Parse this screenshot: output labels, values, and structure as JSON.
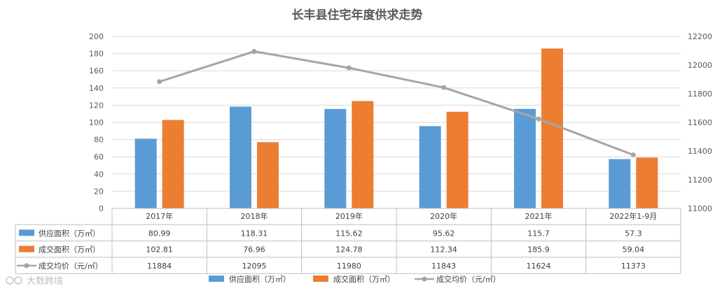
{
  "chart_data": {
    "type": "bar",
    "title": "长丰县住宅年度供求走势",
    "categories": [
      "2017年",
      "2018年",
      "2019年",
      "2020年",
      "2021年",
      "2022年1-9月"
    ],
    "series": [
      {
        "name": "供应面积（万㎡）",
        "type": "bar",
        "axis": "left",
        "color": "#5b9bd5",
        "values": [
          80.99,
          118.31,
          115.62,
          95.62,
          115.7,
          57.3
        ],
        "labels": [
          "80.99",
          "118.31",
          "115.62",
          "95.62",
          "115.7",
          "57.3"
        ]
      },
      {
        "name": "成交面积（万㎡）",
        "type": "bar",
        "axis": "left",
        "color": "#ed7d31",
        "values": [
          102.81,
          76.96,
          124.78,
          112.34,
          185.9,
          59.04
        ],
        "labels": [
          "102.81",
          "76.96",
          "124.78",
          "112.34",
          "185.9",
          "59.04"
        ]
      },
      {
        "name": "成交均价（元/㎡）",
        "type": "line",
        "axis": "right",
        "color": "#a5a5a5",
        "values": [
          11884,
          12095,
          11980,
          11843,
          11624,
          11373
        ],
        "labels": [
          "11884",
          "12095",
          "11980",
          "11843",
          "11624",
          "11373"
        ]
      }
    ],
    "y_left": {
      "range": [
        0,
        200
      ],
      "step": 20,
      "ticks": [
        "0",
        "20",
        "40",
        "60",
        "80",
        "100",
        "120",
        "140",
        "160",
        "180",
        "200"
      ]
    },
    "y_right": {
      "range": [
        11000,
        12200
      ],
      "step": 200,
      "ticks": [
        "11000",
        "11200",
        "11400",
        "11600",
        "11800",
        "12000",
        "12200"
      ]
    },
    "grid": true,
    "data_table": true,
    "legend_position": "bottom"
  },
  "watermark": "大数跨境"
}
